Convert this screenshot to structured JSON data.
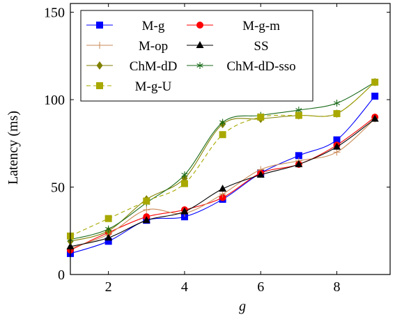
{
  "chart_data": {
    "type": "line",
    "xlabel": "g",
    "ylabel": "Latency (ms)",
    "xlim": [
      1,
      9.4
    ],
    "ylim": [
      0,
      155
    ],
    "xticks": [
      2,
      4,
      6,
      8
    ],
    "yticks": [
      0,
      50,
      100,
      150
    ],
    "grid": false,
    "legend_placement": "top-left",
    "x": [
      1,
      2,
      3,
      4,
      5,
      6,
      7,
      8,
      9
    ],
    "series": [
      {
        "name": "M-g",
        "color": "#0000ff",
        "marker": "square",
        "dash": "solid",
        "values": [
          12,
          19,
          31,
          33,
          43,
          58,
          68,
          77,
          102
        ]
      },
      {
        "name": "M-g-m",
        "color": "#ff0000",
        "marker": "circle",
        "dash": "solid",
        "values": [
          14,
          24,
          33,
          37,
          44,
          58,
          63,
          74,
          90
        ]
      },
      {
        "name": "M-op",
        "color": "#c98a55",
        "marker": "plus",
        "dash": "solid",
        "values": [
          15,
          23,
          37,
          35,
          46,
          60,
          65,
          70,
          89
        ]
      },
      {
        "name": "SS",
        "color": "#000000",
        "marker": "triangle",
        "dash": "solid",
        "values": [
          16,
          21,
          31,
          36,
          49,
          57,
          63,
          73,
          89
        ]
      },
      {
        "name": "ChM-dD",
        "color": "#808000",
        "marker": "diamond",
        "dash": "solid",
        "values": [
          19,
          25,
          43,
          55,
          86,
          89,
          91,
          92,
          110
        ]
      },
      {
        "name": "ChM-dD-sso",
        "color": "#1a6b1a",
        "marker": "star",
        "dash": "solid",
        "values": [
          20,
          26,
          41,
          57,
          87,
          91,
          94,
          98,
          110
        ]
      },
      {
        "name": "M-g-U",
        "color": "#a8a800",
        "marker": "square",
        "dash": "dashed",
        "values": [
          22,
          32,
          42,
          52,
          80,
          90,
          91,
          92,
          110
        ]
      }
    ]
  }
}
